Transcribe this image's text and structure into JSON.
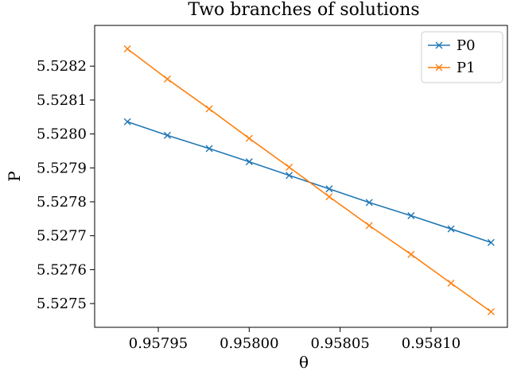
{
  "chart_data": {
    "type": "line",
    "title": "Two branches of solutions",
    "xlabel": "θ",
    "ylabel": "P",
    "xlim": [
      0.957915,
      0.958142
    ],
    "ylim": [
      5.52743,
      5.52832
    ],
    "xticks": [
      0.95795,
      0.958,
      0.95805,
      0.9581
    ],
    "xtick_labels": [
      "0.95795",
      "0.95800",
      "0.95805",
      "0.95810"
    ],
    "yticks": [
      5.5275,
      5.5276,
      5.5277,
      5.5278,
      5.5279,
      5.528,
      5.5281,
      5.5282
    ],
    "ytick_labels": [
      "5.5275",
      "5.5276",
      "5.5277",
      "5.5278",
      "5.5279",
      "5.5280",
      "5.5281",
      "5.5282"
    ],
    "x": [
      0.957933,
      0.957955,
      0.957978,
      0.958,
      0.958022,
      0.958044,
      0.958066,
      0.958089,
      0.958111,
      0.958133
    ],
    "series": [
      {
        "name": "P0",
        "color": "#1f77b4",
        "marker": "x",
        "values": [
          5.528036,
          5.527996,
          5.527957,
          5.527918,
          5.527878,
          5.527838,
          5.527798,
          5.527759,
          5.52772,
          5.52768
        ]
      },
      {
        "name": "P1",
        "color": "#ff7f0e",
        "marker": "x",
        "values": [
          5.528251,
          5.528162,
          5.528074,
          5.527987,
          5.527902,
          5.527815,
          5.52773,
          5.527645,
          5.52756,
          5.527476
        ]
      }
    ],
    "grid": false,
    "legend_position": "top-right"
  }
}
